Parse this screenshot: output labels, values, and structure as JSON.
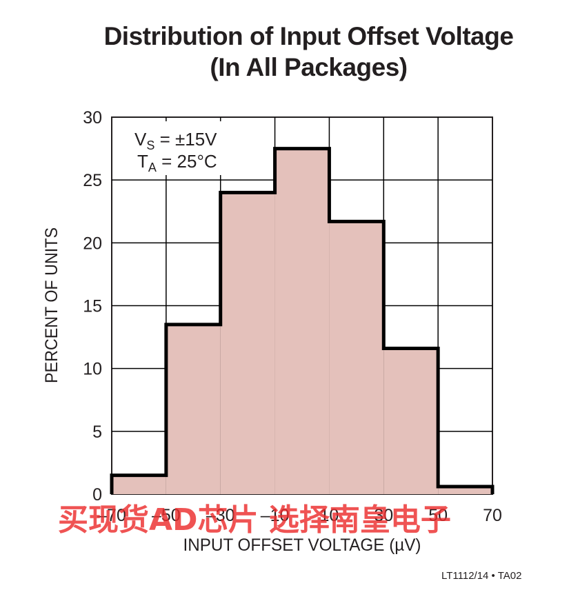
{
  "title_line1": "Distribution of Input Offset Voltage",
  "title_line2": "(In All Packages)",
  "footer": "LT1112/14 • TA02",
  "watermark": "买现货AD芯片 选择南皇电子",
  "colors": {
    "bar_fill": "#e4c1bb",
    "outline": "#000000",
    "grid": "#000000",
    "text": "#231f20",
    "watermark": "#eb2d2d"
  },
  "chart_data": {
    "type": "bar",
    "xlabel": "INPUT OFFSET VOLTAGE (µV)",
    "ylabel": "PERCENT OF UNITS",
    "xlim": [
      -70,
      70
    ],
    "ylim": [
      0,
      30
    ],
    "x_ticks": [
      -70,
      -50,
      -30,
      -10,
      10,
      30,
      50,
      70
    ],
    "x_tick_labels": [
      "–70",
      "–50",
      "–30",
      "–10",
      "10",
      "30",
      "50",
      "70"
    ],
    "y_ticks": [
      0,
      5,
      10,
      15,
      20,
      25,
      30
    ],
    "y_tick_labels": [
      "0",
      "5",
      "10",
      "15",
      "20",
      "25",
      "30"
    ],
    "bins": [
      {
        "from": -70,
        "to": -50,
        "value": 1.5
      },
      {
        "from": -50,
        "to": -30,
        "value": 13.5
      },
      {
        "from": -30,
        "to": -10,
        "value": 24.0
      },
      {
        "from": -10,
        "to": 10,
        "value": 27.5
      },
      {
        "from": 10,
        "to": 30,
        "value": 21.7
      },
      {
        "from": 30,
        "to": 50,
        "value": 11.6
      },
      {
        "from": 50,
        "to": 70,
        "value": 0.6
      }
    ],
    "grid": true,
    "annotation": {
      "line1": {
        "main": "V",
        "sub": "S",
        "rest": " = ±15V"
      },
      "line2": {
        "main": "T",
        "sub": "A",
        "rest": " = 25°C"
      }
    }
  }
}
